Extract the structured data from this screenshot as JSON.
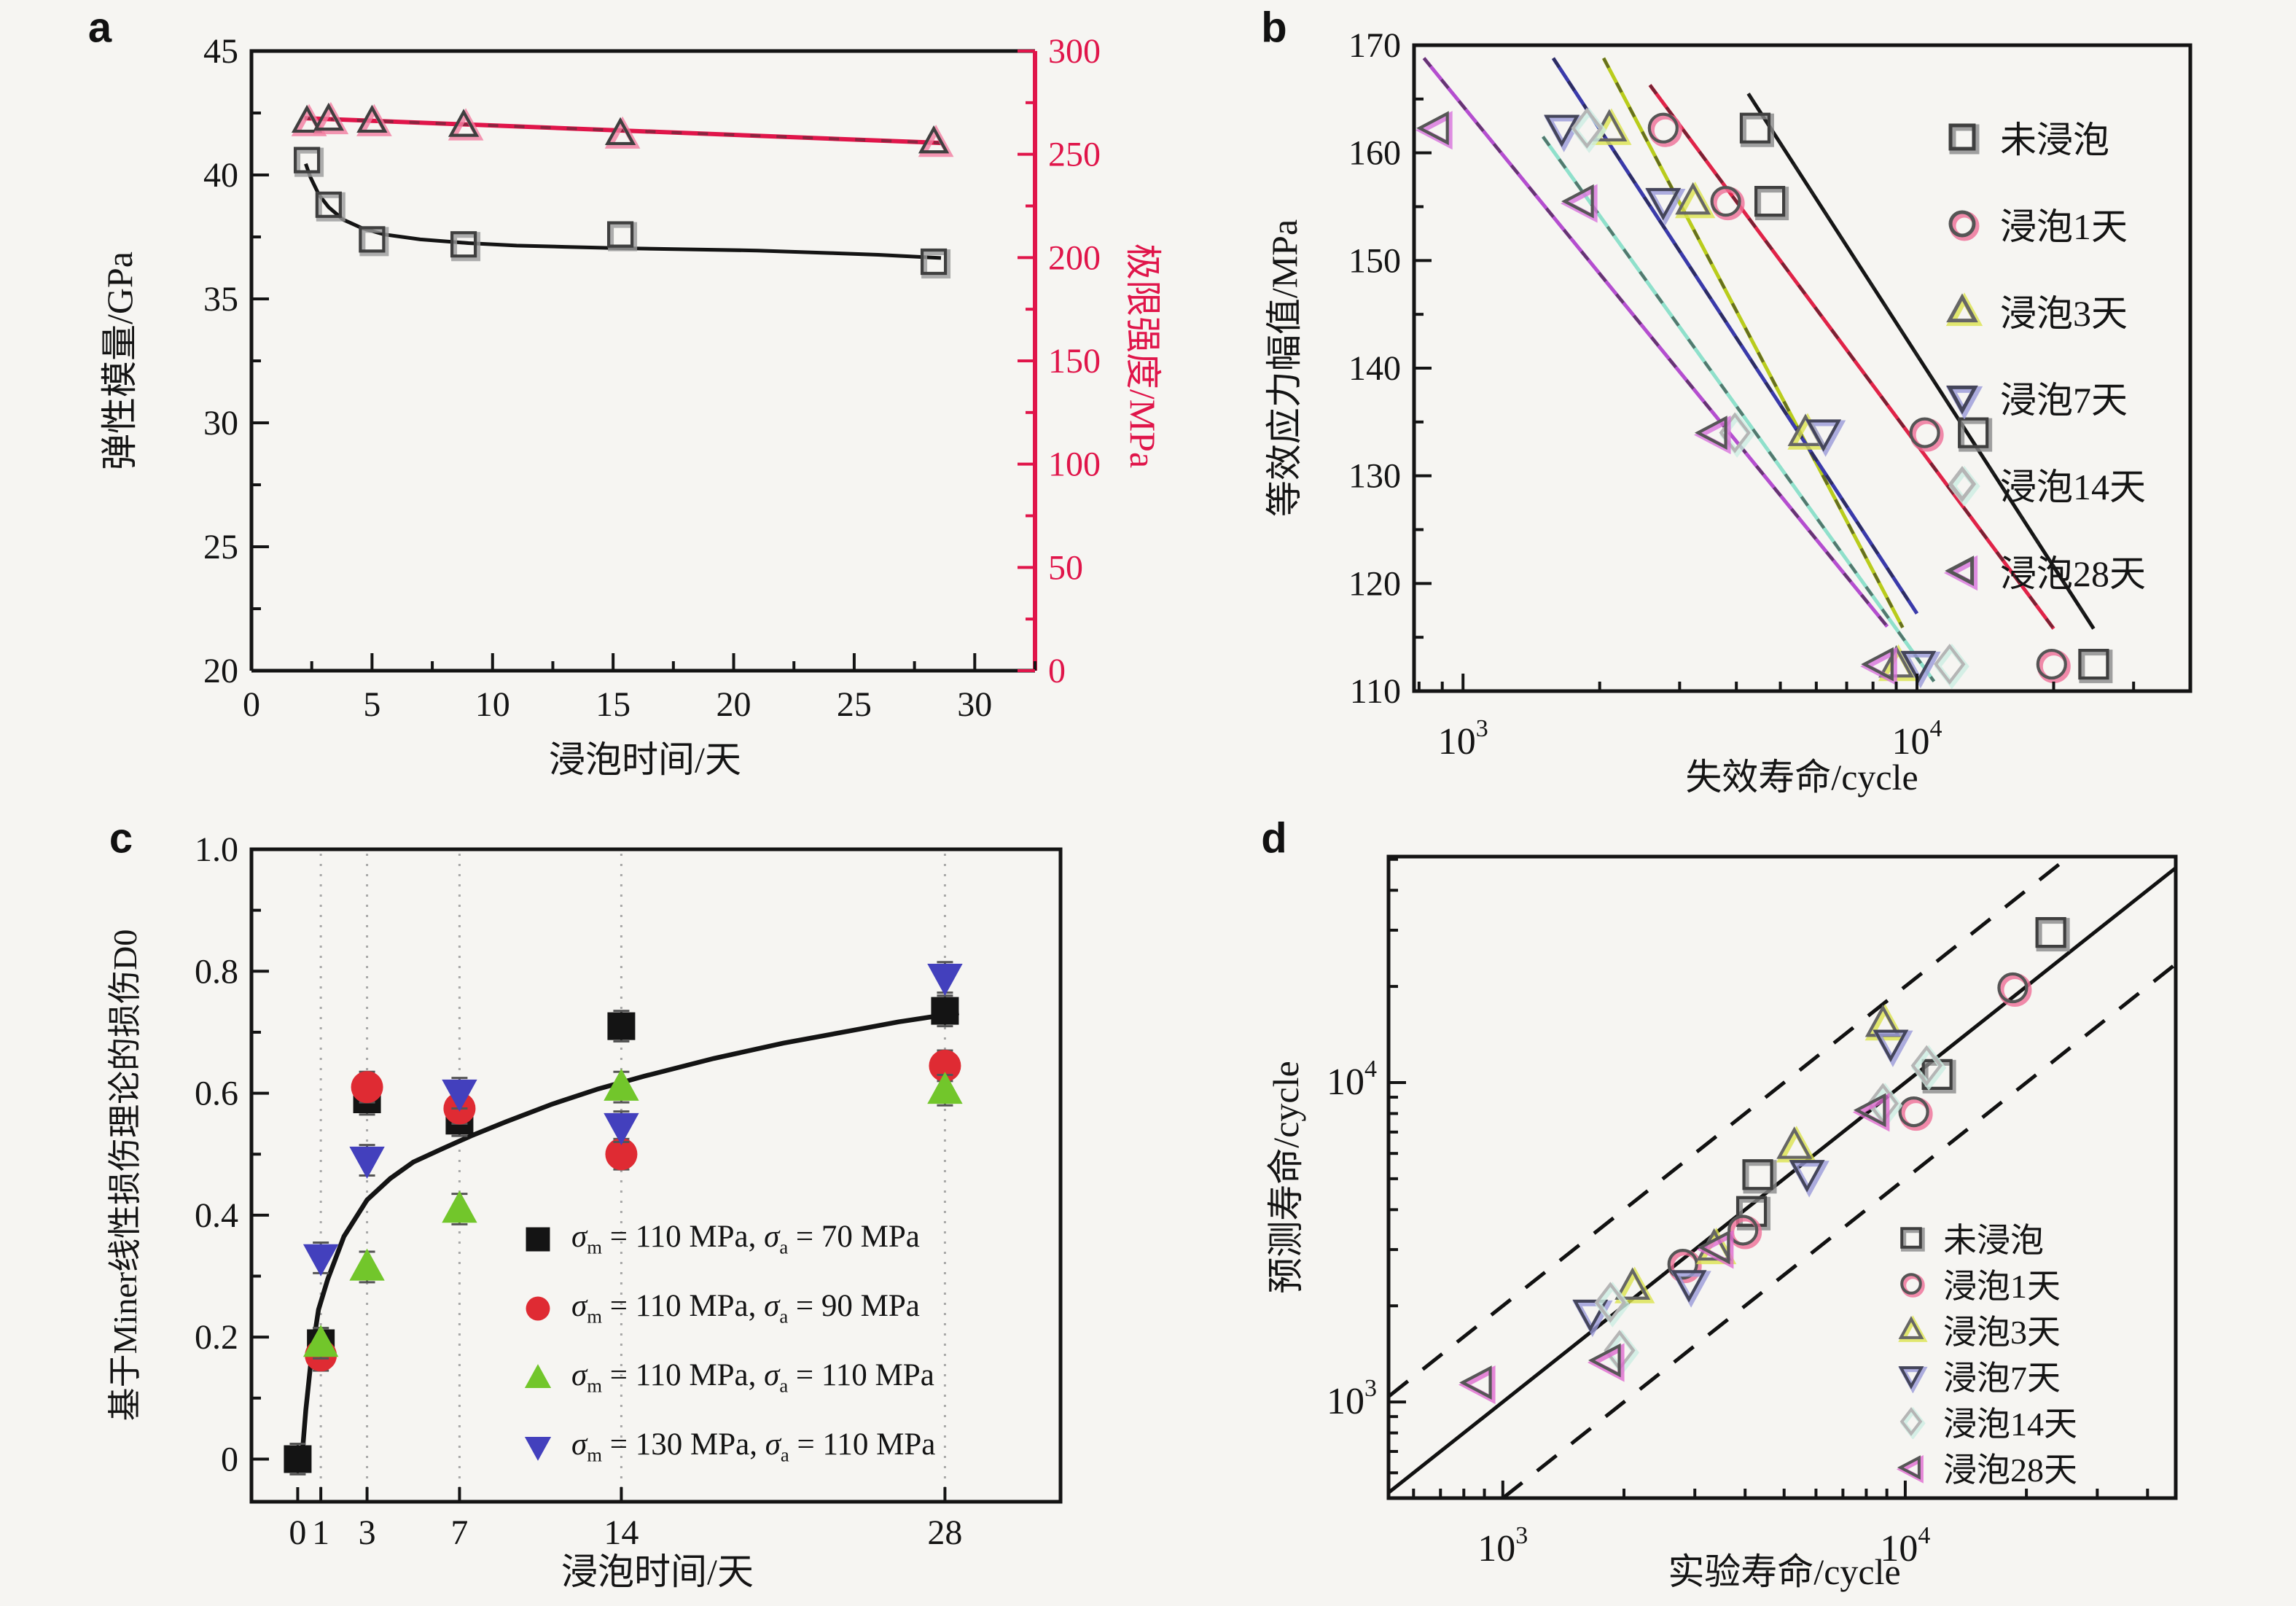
{
  "figure": {
    "background": "#f6f5f2"
  },
  "chart_data": [
    {
      "id": "a",
      "type": "line",
      "panel_label": "a",
      "xlabel": "浸泡时间/天",
      "ylabel_left": "弹性模量/GPa",
      "ylabel_right": "极限强度/MPa",
      "xlim": [
        0,
        32.5
      ],
      "x_major_ticks": [
        0,
        5,
        10,
        15,
        20,
        25,
        30
      ],
      "x_minor_step": 2.5,
      "ylim_left": [
        20,
        45
      ],
      "y_left_major_ticks": [
        20,
        25,
        30,
        35,
        40,
        45
      ],
      "y_left_minor_step": 2.5,
      "ylim_right": [
        0,
        300
      ],
      "y_right_major_ticks": [
        0,
        50,
        100,
        150,
        200,
        250,
        300
      ],
      "y_right_minor_step": 25,
      "axis_color": "#141414",
      "right_axis_color": "#e0154a",
      "series": [
        {
          "name": "弹性模量",
          "axis": "left",
          "marker": "square",
          "outline": "#3f3f3f",
          "accent": "#9a9a9a",
          "x": [
            2.3,
            3.2,
            5.0,
            8.8,
            15.3,
            28.3
          ],
          "y": [
            40.6,
            38.8,
            37.4,
            37.2,
            37.6,
            36.5
          ]
        },
        {
          "name": "极限强度",
          "axis": "right",
          "marker": "triangle-up",
          "outline": "#3f3f3f",
          "accent": "#f27da0",
          "x": [
            2.3,
            3.2,
            5.0,
            8.8,
            15.3,
            28.3
          ],
          "y": [
            266,
            267,
            266,
            264,
            260,
            256
          ]
        }
      ],
      "fits": [
        {
          "axis": "left",
          "color": "#141414",
          "width": 5,
          "points": [
            [
              2.25,
              40.45
            ],
            [
              2.45,
              39.9
            ],
            [
              2.8,
              39.2
            ],
            [
              3.2,
              38.7
            ],
            [
              3.8,
              38.2
            ],
            [
              4.6,
              37.85
            ],
            [
              5.5,
              37.6
            ],
            [
              7,
              37.4
            ],
            [
              9,
              37.25
            ],
            [
              11,
              37.15
            ],
            [
              13,
              37.1
            ],
            [
              15,
              37.05
            ],
            [
              18,
              37.0
            ],
            [
              21,
              36.95
            ],
            [
              24,
              36.85
            ],
            [
              26,
              36.78
            ],
            [
              28.6,
              36.65
            ]
          ]
        },
        {
          "axis": "right",
          "color": "#e0154a",
          "width": 6,
          "points": [
            [
              2.2,
              267.5
            ],
            [
              28.6,
              255.5
            ]
          ]
        }
      ]
    },
    {
      "id": "b",
      "type": "scatter",
      "panel_label": "b",
      "xlabel": "失效寿命/cycle",
      "ylabel": "等效应力幅值/MPa",
      "xlim": [
        780,
        40000
      ],
      "x_log": true,
      "ylim": [
        110,
        170
      ],
      "y_major_ticks": [
        110,
        120,
        130,
        140,
        150,
        160,
        170
      ],
      "y_minor_step": 5,
      "series": [
        {
          "name": "未浸泡",
          "marker": "square",
          "outline": "#3f3f3f",
          "accent": "#8a8a8a",
          "line_color": "#141414",
          "points": [
            [
              4400,
              162.3
            ],
            [
              4740,
              155.5
            ],
            [
              13300,
              134
            ],
            [
              24500,
              112.5
            ]
          ],
          "fit": [
            [
              4250,
              165.5
            ],
            [
              24500,
              115.8
            ]
          ]
        },
        {
          "name": "浸泡1天",
          "marker": "circle",
          "outline": "#555555",
          "accent": "#ef6e96",
          "line_color": "#e02348",
          "points": [
            [
              2760,
              162.3
            ],
            [
              3790,
              155.5
            ],
            [
              10400,
              134
            ],
            [
              19800,
              112.5
            ]
          ],
          "fit": [
            [
              2580,
              166.3
            ],
            [
              20000,
              115.8
            ]
          ]
        },
        {
          "name": "浸泡3天",
          "marker": "triangle-up",
          "outline": "#666666",
          "accent": "#dce34e",
          "line_color": "#b9cc1c",
          "points": [
            [
              2100,
              162.3
            ],
            [
              3210,
              155.5
            ],
            [
              5680,
              134
            ],
            [
              9000,
              112.5
            ]
          ],
          "fit": [
            [
              2040,
              168.8
            ],
            [
              9300,
              115.9
            ]
          ]
        },
        {
          "name": "浸泡7天",
          "marker": "triangle-down",
          "outline": "#44455a",
          "accent": "#9a9ad8",
          "line_color": "#3a3aaa",
          "points": [
            [
              1650,
              162.3
            ],
            [
              2760,
              155.5
            ],
            [
              6220,
              134
            ],
            [
              10070,
              112.5
            ]
          ],
          "fit": [
            [
              1580,
              168.8
            ],
            [
              10000,
              117.2
            ]
          ]
        },
        {
          "name": "浸泡14天",
          "marker": "diamond",
          "outline": "#b5b5b5",
          "accent": "#cdeee2",
          "line_color": "#8fe0cb",
          "points": [
            [
              1875,
              162.3
            ],
            [
              3970,
              134
            ],
            [
              11800,
              112.5
            ]
          ],
          "fit": [
            [
              1500,
              161.5
            ],
            [
              10900,
              110.9
            ]
          ]
        },
        {
          "name": "浸泡28天",
          "marker": "triangle-left",
          "outline": "#565656",
          "accent": "#d873dc",
          "line_color": "#b44ecf",
          "points": [
            [
              870,
              162.3
            ],
            [
              1815,
              155.5
            ],
            [
              3570,
              134
            ],
            [
              8300,
              112.5
            ]
          ],
          "fit": [
            [
              820,
              168.8
            ],
            [
              8600,
              116.0
            ]
          ]
        }
      ]
    },
    {
      "id": "c",
      "type": "scatter",
      "panel_label": "c",
      "xlabel": "浸泡时间/天",
      "ylabel": "基于Miner线性损伤理论的损伤D0",
      "xlim": [
        -2,
        33
      ],
      "x_major_ticks": [
        0,
        1,
        3,
        7,
        14,
        28
      ],
      "ylim": [
        -0.07,
        1.0
      ],
      "y_major_ticks": [
        0,
        0.2,
        0.4,
        0.6,
        0.8,
        1.0
      ],
      "y_minor_step": 0.1,
      "gridlines": [
        1,
        3,
        7,
        14,
        28
      ],
      "error_bar": 0.025,
      "series": [
        {
          "legend": "σm = 110 MPa, σa = 70 MPa",
          "marker": "square",
          "color": "#141414",
          "x": [
            0,
            1,
            3,
            7,
            14,
            28
          ],
          "y": [
            0.0,
            0.19,
            0.59,
            0.555,
            0.71,
            0.735
          ]
        },
        {
          "legend": "σm = 110 MPa, σa = 90 MPa",
          "marker": "circle",
          "color": "#df2b33",
          "x": [
            1,
            3,
            7,
            14,
            28
          ],
          "y": [
            0.17,
            0.61,
            0.575,
            0.5,
            0.645
          ]
        },
        {
          "legend": "σm = 110 MPa, σa = 110 MPa",
          "marker": "triangle-up",
          "color": "#72c62b",
          "x": [
            1,
            3,
            7,
            14,
            28
          ],
          "y": [
            0.19,
            0.315,
            0.41,
            0.61,
            0.605
          ]
        },
        {
          "legend": "σm = 130 MPa, σa = 110 MPa",
          "marker": "triangle-down",
          "color": "#4340bd",
          "x": [
            1,
            3,
            7,
            14,
            28
          ],
          "y": [
            0.33,
            0.49,
            0.6,
            0.545,
            0.79
          ]
        }
      ],
      "fit": [
        [
          0.18,
          0.0
        ],
        [
          0.35,
          0.08
        ],
        [
          0.6,
          0.17
        ],
        [
          0.9,
          0.245
        ],
        [
          1.3,
          0.295
        ],
        [
          2,
          0.365
        ],
        [
          3,
          0.425
        ],
        [
          4,
          0.46
        ],
        [
          5,
          0.487
        ],
        [
          6.2,
          0.508
        ],
        [
          7.5,
          0.53
        ],
        [
          9,
          0.553
        ],
        [
          11,
          0.582
        ],
        [
          13,
          0.607
        ],
        [
          15,
          0.628
        ],
        [
          18,
          0.657
        ],
        [
          21,
          0.682
        ],
        [
          24,
          0.703
        ],
        [
          26,
          0.717
        ],
        [
          28.6,
          0.732
        ]
      ]
    },
    {
      "id": "d",
      "type": "scatter",
      "panel_label": "d",
      "xlabel": "实验寿命/cycle",
      "ylabel": "预测寿命/cycle",
      "xlim": [
        520,
        47000
      ],
      "ylim": [
        500,
        51000
      ],
      "x_log": true,
      "y_log": true,
      "diagonal": true,
      "band_factor": 2,
      "series": [
        {
          "name": "未浸泡",
          "marker": "square",
          "outline": "#3f3f3f",
          "accent": "#8a8a8a",
          "points": [
            [
              4300,
              5150
            ],
            [
              4150,
              3950
            ],
            [
              12000,
              10600
            ],
            [
              23000,
              29500
            ]
          ]
        },
        {
          "name": "浸泡1天",
          "marker": "circle",
          "outline": "#555555",
          "accent": "#ef6e96",
          "points": [
            [
              2800,
              2700
            ],
            [
              3950,
              3450
            ],
            [
              10500,
              8100
            ],
            [
              18500,
              19800
            ]
          ]
        },
        {
          "name": "浸泡3天",
          "marker": "triangle-up",
          "outline": "#666666",
          "accent": "#dce34e",
          "points": [
            [
              2100,
              2300
            ],
            [
              3350,
              3050
            ],
            [
              5300,
              6350
            ],
            [
              8800,
              15300
            ]
          ]
        },
        {
          "name": "浸泡7天",
          "marker": "triangle-down",
          "outline": "#44455a",
          "accent": "#9a9ad8",
          "points": [
            [
              1650,
              1900
            ],
            [
              2900,
              2350
            ],
            [
              5700,
              5200
            ],
            [
              9200,
              13300
            ]
          ]
        },
        {
          "name": "浸泡14天",
          "marker": "diamond",
          "outline": "#b5b5b5",
          "accent": "#cdeee2",
          "points": [
            [
              1850,
              2050
            ],
            [
              1950,
              1450
            ],
            [
              8800,
              8600
            ],
            [
              11300,
              11300
            ]
          ]
        },
        {
          "name": "浸泡28天",
          "marker": "triangle-left",
          "outline": "#565656",
          "accent": "#e06ad0",
          "points": [
            [
              870,
              1150
            ],
            [
              1820,
              1350
            ],
            [
              3400,
              3050
            ],
            [
              8300,
              8200
            ]
          ]
        }
      ]
    }
  ]
}
